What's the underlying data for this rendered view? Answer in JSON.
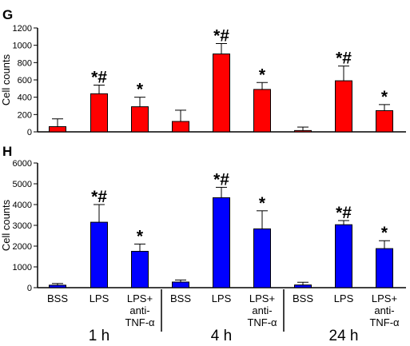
{
  "chart_data": [
    {
      "type": "bar",
      "panel": "G",
      "ylabel": "Cell counts",
      "ylim": [
        0,
        1200
      ],
      "yticks": [
        0,
        200,
        400,
        600,
        800,
        1000,
        1200
      ],
      "color": "#ff0000",
      "categories": [
        "BSS",
        "LPS",
        "LPS+\nanti-\nTNF-α",
        "BSS",
        "LPS",
        "LPS+\nanti-\nTNF-α",
        "BSS",
        "LPS",
        "LPS+\nanti-\nTNF-α"
      ],
      "values": [
        60,
        440,
        290,
        120,
        900,
        490,
        15,
        590,
        245
      ],
      "errors": [
        90,
        100,
        110,
        130,
        120,
        80,
        40,
        170,
        70
      ],
      "significance": [
        "",
        "*#",
        "*",
        "",
        "*#",
        "*",
        "",
        "*#",
        "*"
      ]
    },
    {
      "type": "bar",
      "panel": "H",
      "ylabel": "Cell counts",
      "ylim": [
        0,
        6000
      ],
      "yticks": [
        0,
        1000,
        2000,
        3000,
        4000,
        5000,
        6000
      ],
      "color": "#0000ff",
      "categories": [
        "BSS",
        "LPS",
        "LPS+\nanti-\nTNF-α",
        "BSS",
        "LPS",
        "LPS+\nanti-\nTNF-α",
        "BSS",
        "LPS",
        "LPS+\nanti-\nTNF-α"
      ],
      "values": [
        120,
        3150,
        1750,
        270,
        4330,
        2830,
        130,
        3030,
        1880
      ],
      "errors": [
        80,
        850,
        350,
        100,
        500,
        870,
        130,
        200,
        380
      ],
      "significance": [
        "",
        "*#",
        "*",
        "",
        "*#",
        "*",
        "",
        "*#",
        "*"
      ]
    }
  ],
  "groups": [
    "1 h",
    "4 h",
    "24 h"
  ]
}
